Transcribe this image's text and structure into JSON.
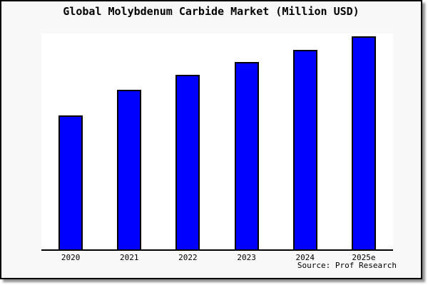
{
  "colors": {
    "bar_fill": "#0000ff",
    "bar_border": "#000000",
    "frame_background": "#f8f8f8",
    "plot_background": "#ffffff",
    "border": "#000000",
    "text": "#000000"
  },
  "chart_data": {
    "type": "bar",
    "title": "Global Molybdenum Carbide Market (Million USD)",
    "categories": [
      "2020",
      "2021",
      "2022",
      "2023",
      "2024",
      "2025e"
    ],
    "values": [
      62.8,
      75.0,
      81.9,
      87.9,
      93.5,
      100.0
    ],
    "values_note": "no y-axis ticks or gridlines shown; values estimated from bar heights, normalized to 2025e = 100",
    "xlabel": "",
    "ylabel": "",
    "ylim": [
      0,
      101.3
    ],
    "grid": false,
    "legend": "none",
    "source": "Source: Prof Research"
  }
}
